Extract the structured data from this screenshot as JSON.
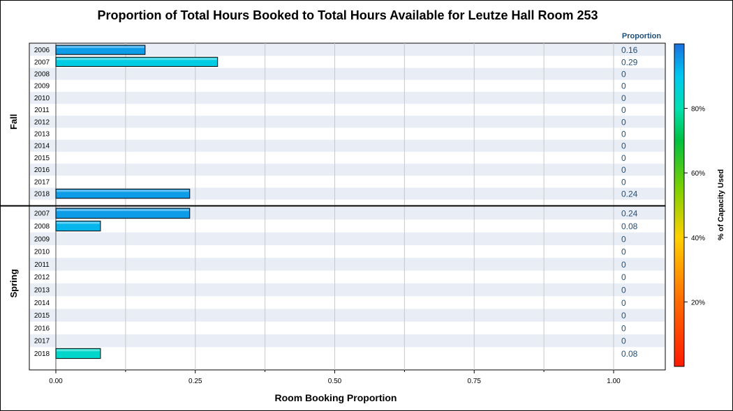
{
  "chart_data": {
    "type": "bar",
    "orientation": "horizontal",
    "title": "Proportion of Total Hours Booked to Total Hours Available for Leutze Hall Room 253",
    "xlabel": "Room Booking Proportion",
    "xlim": [
      0,
      1.1
    ],
    "xticks": [
      "0.00",
      "0.25",
      "0.50",
      "0.75",
      "1.00"
    ],
    "xtick_values": [
      0,
      0.25,
      0.5,
      0.75,
      1.0
    ],
    "value_column_header": "Proportion",
    "grid": true,
    "panels": [
      {
        "name": "Fall",
        "categories": [
          "2006",
          "2007",
          "2008",
          "2009",
          "2010",
          "2011",
          "2012",
          "2013",
          "2014",
          "2015",
          "2016",
          "2017",
          "2018"
        ],
        "values": [
          0.16,
          0.29,
          0,
          0,
          0,
          0,
          0,
          0,
          0,
          0,
          0,
          0,
          0.24
        ],
        "labels": [
          "0.16",
          "0.29",
          "0",
          "0",
          "0",
          "0",
          "0",
          "0",
          "0",
          "0",
          "0",
          "0",
          "0.24"
        ],
        "capacity_used_pct": [
          95,
          88,
          0,
          0,
          0,
          0,
          0,
          0,
          0,
          0,
          0,
          0,
          95
        ]
      },
      {
        "name": "Spring",
        "categories": [
          "2007",
          "2008",
          "2009",
          "2010",
          "2011",
          "2012",
          "2013",
          "2014",
          "2015",
          "2016",
          "2017",
          "2018"
        ],
        "values": [
          0.24,
          0.08,
          0,
          0,
          0,
          0,
          0,
          0,
          0,
          0,
          0,
          0.08
        ],
        "labels": [
          "0.24",
          "0.08",
          "0",
          "0",
          "0",
          "0",
          "0",
          "0",
          "0",
          "0",
          "0",
          "0.08"
        ],
        "capacity_used_pct": [
          95,
          92,
          0,
          0,
          0,
          0,
          0,
          0,
          0,
          0,
          0,
          84
        ]
      }
    ],
    "color_legend": {
      "title": "% of Capacity Used",
      "placement": "right",
      "ticks": [
        "20%",
        "40%",
        "60%",
        "80%"
      ],
      "tick_values": [
        20,
        40,
        60,
        80
      ],
      "range": [
        0,
        100
      ],
      "colors": [
        "#ff0000",
        "#ff8000",
        "#ffff00",
        "#00cc00",
        "#00ffcc",
        "#00ccff",
        "#0080ff"
      ]
    },
    "colors": {
      "band": "#e8edf6",
      "grid": "#c8c8c8",
      "value_text": "#1f4e79"
    }
  }
}
